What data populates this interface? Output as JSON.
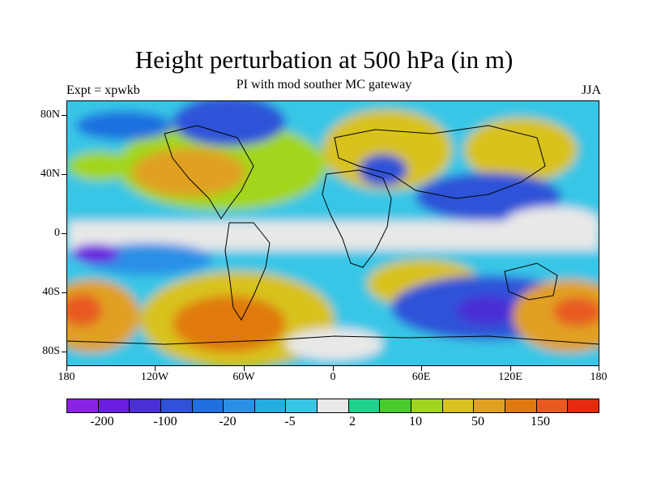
{
  "title": "Height perturbation at 500 hPa (in m)",
  "subtitle": "PI with mod souther MC gateway",
  "left_string": "Expt = xpwkb",
  "right_string": "JJA",
  "lat_labels": [
    "80N",
    "40N",
    "0",
    "40S",
    "80S"
  ],
  "lon_labels": [
    "180",
    "120W",
    "60W",
    "0",
    "60E",
    "120E",
    "180"
  ],
  "colorbar": {
    "colors": [
      "#8a22e6",
      "#6a1fe0",
      "#4a2fd6",
      "#2f52d8",
      "#1f6fdf",
      "#2a90e6",
      "#23aee0",
      "#39c6e6",
      "#e8e8e8",
      "#1ed38e",
      "#4acb2a",
      "#a2d61e",
      "#d8c21e",
      "#e0a020",
      "#e07a10",
      "#e85a20",
      "#e62a10"
    ],
    "labels": [
      "-200",
      "-100",
      "-20",
      "-5",
      "2",
      "10",
      "50",
      "150"
    ]
  },
  "map_data": {
    "type": "filled contour map",
    "variable": "500 hPa height perturbation (m)",
    "season": "JJA",
    "lat_range": [
      -90,
      90
    ],
    "lon_range": [
      -180,
      180
    ],
    "features": [
      {
        "label": "positive anomaly",
        "lon": -170,
        "lat": -50
      },
      {
        "label": "positive anomaly",
        "lon": -70,
        "lat": -55
      },
      {
        "label": "positive anomaly",
        "lon": -95,
        "lat": 40
      },
      {
        "label": "positive anomaly",
        "lon": 40,
        "lat": 55
      },
      {
        "label": "positive anomaly",
        "lon": 160,
        "lat": -55
      },
      {
        "label": "negative anomaly",
        "lon": 110,
        "lat": -50
      },
      {
        "label": "negative anomaly",
        "lon": -110,
        "lat": 70
      },
      {
        "label": "negative anomaly",
        "lon": 100,
        "lat": 40
      }
    ]
  }
}
